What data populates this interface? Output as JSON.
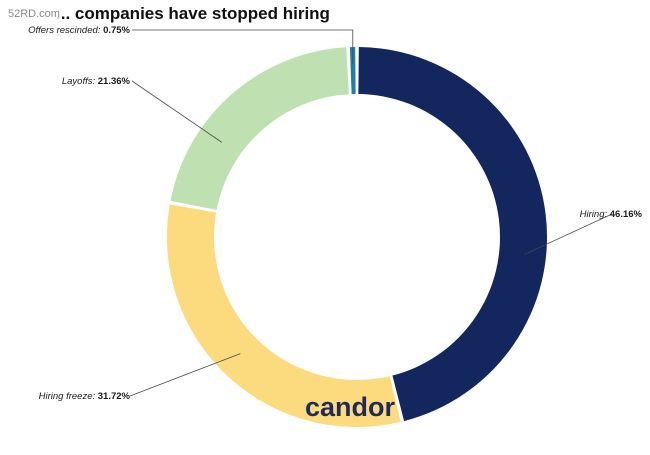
{
  "watermark": "52RD.com",
  "logo_text": "candor",
  "chart_data": {
    "type": "pie",
    "subtype": "donut",
    "title": "... companies have stopped hiring",
    "slices": [
      {
        "label": "Hiring",
        "value": 46.16,
        "value_label": "46.16%",
        "color": "#13265e"
      },
      {
        "label": "Hiring freeze",
        "value": 31.72,
        "value_label": "31.72%",
        "color": "#fbdb7e"
      },
      {
        "label": "Layoffs",
        "value": 21.36,
        "value_label": "21.36%",
        "color": "#bfe0b0"
      },
      {
        "label": "Offers rescinded",
        "value": 0.75,
        "value_label": "0.75%",
        "color": "#1f7fa8"
      }
    ]
  }
}
